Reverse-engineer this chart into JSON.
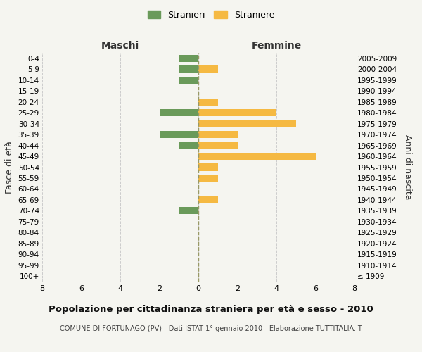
{
  "age_groups": [
    "100+",
    "95-99",
    "90-94",
    "85-89",
    "80-84",
    "75-79",
    "70-74",
    "65-69",
    "60-64",
    "55-59",
    "50-54",
    "45-49",
    "40-44",
    "35-39",
    "30-34",
    "25-29",
    "20-24",
    "15-19",
    "10-14",
    "5-9",
    "0-4"
  ],
  "birth_years": [
    "≤ 1909",
    "1910-1914",
    "1915-1919",
    "1920-1924",
    "1925-1929",
    "1930-1934",
    "1935-1939",
    "1940-1944",
    "1945-1949",
    "1950-1954",
    "1955-1959",
    "1960-1964",
    "1965-1969",
    "1970-1974",
    "1975-1979",
    "1980-1984",
    "1985-1989",
    "1990-1994",
    "1995-1999",
    "2000-2004",
    "2005-2009"
  ],
  "males": [
    0,
    0,
    0,
    0,
    0,
    0,
    1,
    0,
    0,
    0,
    0,
    0,
    1,
    2,
    0,
    2,
    0,
    0,
    1,
    1,
    1
  ],
  "females": [
    0,
    0,
    0,
    0,
    0,
    0,
    0,
    1,
    0,
    1,
    1,
    6,
    2,
    2,
    5,
    4,
    1,
    0,
    0,
    1,
    0
  ],
  "male_color": "#6a9a5a",
  "female_color": "#f5b942",
  "background_color": "#f5f5f0",
  "grid_color": "#cccccc",
  "center_line_color": "#999966",
  "title": "Popolazione per cittadinanza straniera per età e sesso - 2010",
  "subtitle": "COMUNE DI FORTUNAGO (PV) - Dati ISTAT 1° gennaio 2010 - Elaborazione TUTTITALIA.IT",
  "xlabel_left": "Maschi",
  "xlabel_right": "Femmine",
  "ylabel_left": "Fasce di età",
  "ylabel_right": "Anni di nascita",
  "legend_male": "Stranieri",
  "legend_female": "Straniere",
  "xlim": 8
}
